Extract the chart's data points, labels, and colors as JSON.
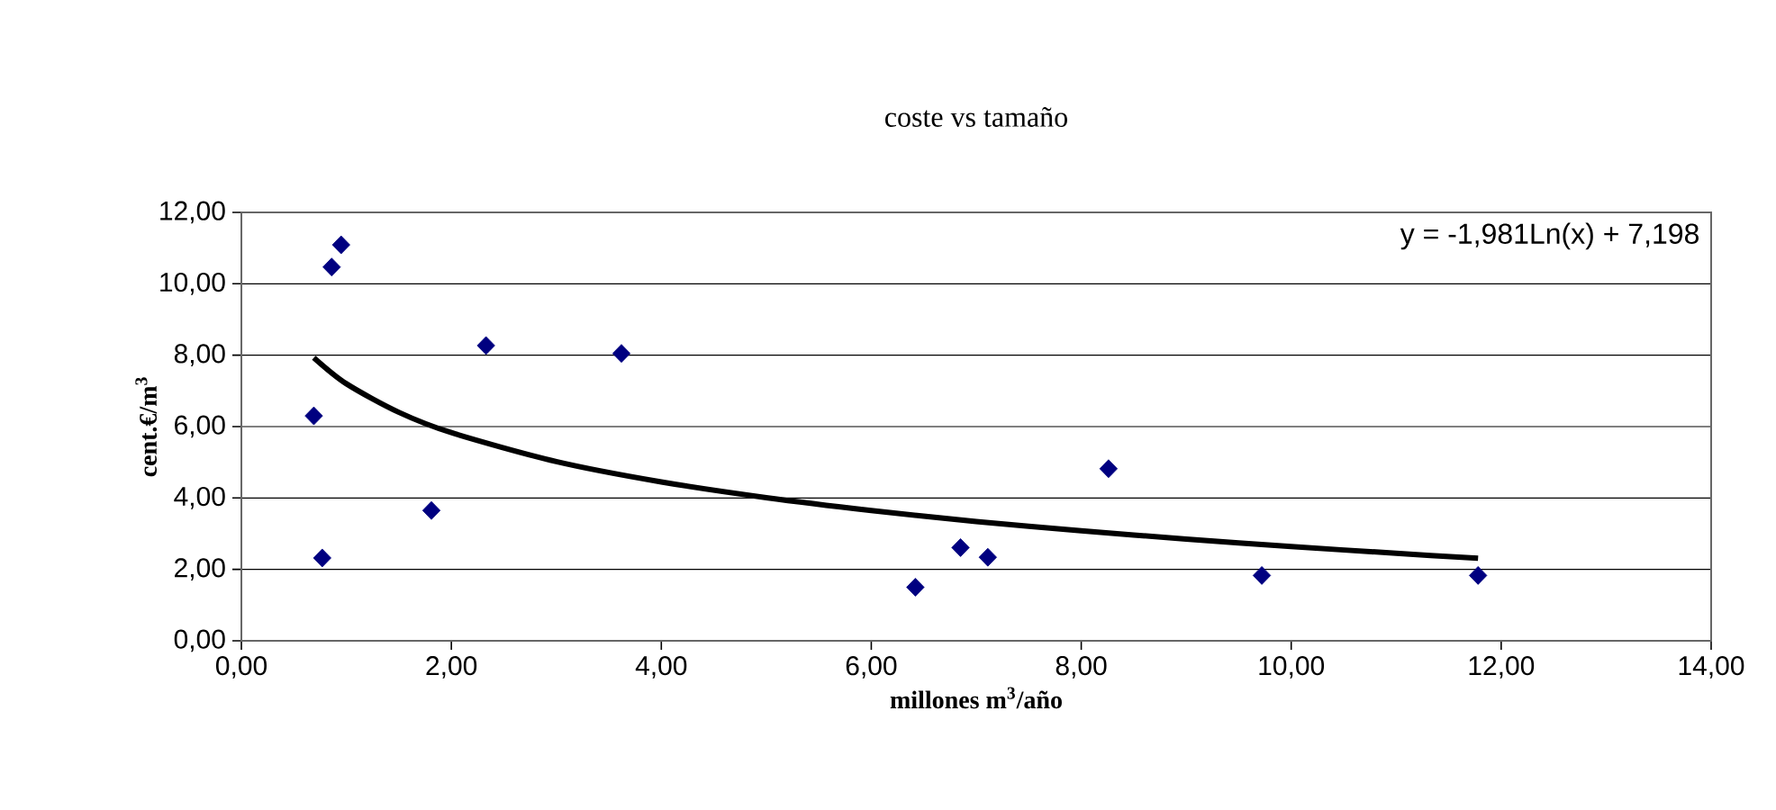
{
  "chart_data": {
    "type": "scatter",
    "title": "coste vs tamaño",
    "xlabel": "millones m$^{3}$/año",
    "ylabel": "cent.€/m$^{3}$",
    "annotations": [
      "y = -1,981Ln(x) + 7,198"
    ],
    "series": [
      {
        "color": "#000080",
        "marker": "diamond",
        "x": [
          0.69,
          0.77,
          0.86,
          0.95,
          1.81,
          2.33,
          3.62,
          6.42,
          6.85,
          7.11,
          8.26,
          9.72,
          11.78
        ],
        "values": [
          6.3,
          2.32,
          10.47,
          11.09,
          3.65,
          8.27,
          8.05,
          1.5,
          2.61,
          2.34,
          4.82,
          1.83,
          1.83
        ]
      },
      {
        "type": "line",
        "color": "#000000",
        "marker": "none",
        "x": [
          0.69,
          1,
          1.5,
          2,
          3,
          4,
          5,
          6,
          7,
          8,
          9,
          10,
          11,
          11.78
        ],
        "values": [
          7.93,
          7.2,
          6.4,
          5.83,
          5.02,
          4.45,
          4.01,
          3.65,
          3.34,
          3.08,
          2.85,
          2.64,
          2.45,
          2.31
        ]
      }
    ],
    "xlim": [
      0,
      14
    ],
    "ylim": [
      0,
      12
    ],
    "xticks": [
      {
        "value": 0,
        "label": "0,00"
      },
      {
        "value": 2,
        "label": "2,00"
      },
      {
        "value": 4,
        "label": "4,00"
      },
      {
        "value": 6,
        "label": "6,00"
      },
      {
        "value": 8,
        "label": "8,00"
      },
      {
        "value": 10,
        "label": "10,00"
      },
      {
        "value": 12,
        "label": "12,00"
      },
      {
        "value": 14,
        "label": "14,00"
      }
    ],
    "yticks": [
      {
        "value": 0,
        "label": "0,00"
      },
      {
        "value": 2,
        "label": "2,00"
      },
      {
        "value": 4,
        "label": "4,00"
      },
      {
        "value": 6,
        "label": "6,00"
      },
      {
        "value": 8,
        "label": "8,00"
      },
      {
        "value": 10,
        "label": "10,00"
      },
      {
        "value": 12,
        "label": "12,00"
      }
    ],
    "grid": "y"
  }
}
